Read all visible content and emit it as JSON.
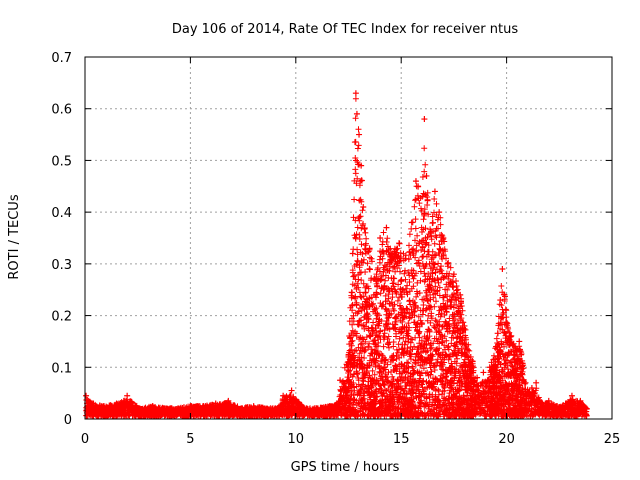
{
  "chart_data": {
    "type": "scatter",
    "title": "Day 106 of 2014, Rate Of TEC Index for receiver ntus",
    "xlabel": "GPS time / hours",
    "ylabel": "ROTI / TECUs",
    "xlim": [
      0,
      25
    ],
    "ylim": [
      0,
      0.7
    ],
    "xticks": [
      0,
      5,
      10,
      15,
      20,
      25
    ],
    "yticks": [
      0,
      0.1,
      0.2,
      0.3,
      0.4,
      0.5,
      0.6,
      0.7
    ],
    "xtick_labels": [
      "0",
      "5",
      "10",
      "15",
      "20",
      "25"
    ],
    "ytick_labels": [
      "0",
      "0.1",
      "0.2",
      "0.3",
      "0.4",
      "0.5",
      "0.6",
      "0.7"
    ],
    "grid": true,
    "marker": "+",
    "color": "#ff0000",
    "series": [
      {
        "name": "ROTI",
        "x": [
          0.05,
          0.4,
          0.9,
          1.5,
          2.0,
          2.6,
          3.2,
          3.8,
          4.4,
          5.0,
          5.6,
          6.2,
          6.8,
          7.4,
          8.0,
          8.6,
          9.2,
          9.4,
          9.8,
          10.4,
          11.0,
          11.6,
          12.0,
          12.1,
          12.5,
          12.7,
          12.85,
          12.9,
          13.0,
          13.1,
          13.2,
          13.3,
          13.5,
          13.8,
          14.0,
          14.3,
          14.6,
          14.9,
          15.2,
          15.5,
          15.7,
          15.8,
          16.0,
          16.1,
          16.2,
          16.4,
          16.6,
          16.8,
          17.0,
          17.2,
          17.5,
          17.8,
          18.0,
          18.3,
          18.6,
          18.9,
          19.2,
          19.5,
          19.7,
          19.8,
          19.9,
          20.2,
          20.4,
          20.6,
          20.9,
          21.2,
          21.4,
          21.7,
          22.0,
          22.4,
          22.8,
          23.1,
          23.5,
          23.8
        ],
        "y": [
          0.045,
          0.03,
          0.025,
          0.03,
          0.045,
          0.02,
          0.025,
          0.02,
          0.02,
          0.025,
          0.025,
          0.03,
          0.035,
          0.02,
          0.025,
          0.02,
          0.02,
          0.045,
          0.055,
          0.02,
          0.02,
          0.025,
          0.03,
          0.075,
          0.12,
          0.32,
          0.63,
          0.59,
          0.55,
          0.49,
          0.41,
          0.36,
          0.33,
          0.27,
          0.35,
          0.37,
          0.32,
          0.34,
          0.31,
          0.38,
          0.46,
          0.45,
          0.43,
          0.58,
          0.47,
          0.36,
          0.44,
          0.4,
          0.35,
          0.3,
          0.28,
          0.24,
          0.18,
          0.12,
          0.08,
          0.09,
          0.1,
          0.14,
          0.23,
          0.29,
          0.24,
          0.16,
          0.14,
          0.15,
          0.07,
          0.06,
          0.07,
          0.03,
          0.035,
          0.025,
          0.03,
          0.045,
          0.035,
          0.02
        ]
      }
    ]
  }
}
